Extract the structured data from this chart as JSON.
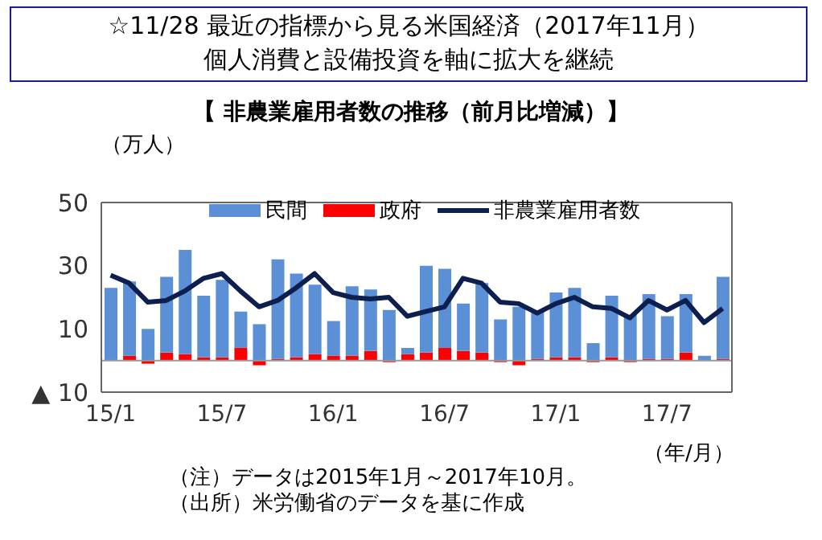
{
  "chart_data": {
    "type": "bar",
    "title": "【 非農業雇用者数の推移（前月比増減）】",
    "ylabel": "（万人）",
    "xlabel": "（年/月）",
    "annotations": [
      "☆11/28 最近の指標から見る米国経済（2017年11月）",
      "個人消費と設備投資を軸に拡大を継続",
      "（注）データは2015年1月～2017年10月。",
      "（出所）米労働省のデータを基に作成"
    ],
    "categories": [
      "15/1",
      null,
      null,
      null,
      null,
      null,
      "15/7",
      null,
      null,
      null,
      null,
      null,
      "16/1",
      null,
      null,
      null,
      null,
      null,
      "16/7",
      null,
      null,
      null,
      null,
      null,
      "17/1",
      null,
      null,
      null,
      null,
      null,
      "17/7",
      null,
      null,
      null
    ],
    "stacked": true,
    "series": [
      {
        "name": "政府",
        "color": "#ff0000",
        "values": [
          0,
          1.5,
          -1,
          2.5,
          2,
          1,
          1,
          4,
          -1.5,
          0.5,
          1,
          2,
          1.5,
          1.5,
          3,
          -0.5,
          2,
          2.5,
          4,
          3,
          2.5,
          -0.5,
          -1.5,
          0.5,
          1,
          1,
          -0.5,
          1,
          -0.5,
          0.5,
          0.5,
          2.5,
          0,
          0.5
        ]
      },
      {
        "name": "民間",
        "color": "#5b8fd6",
        "values": [
          23,
          23.5,
          10,
          24,
          33,
          19.5,
          24.5,
          11.5,
          11.5,
          31.5,
          26.5,
          22,
          11,
          22,
          19.5,
          16,
          2,
          27.5,
          25,
          15,
          22,
          13,
          17,
          15,
          20.5,
          22,
          5.5,
          19.5,
          14.5,
          20.5,
          13.5,
          18.5,
          1.5,
          26
        ]
      },
      {
        "name": "非農業雇用者数",
        "type": "line",
        "color": "#0d1f4f",
        "values": [
          27,
          24.5,
          18.5,
          19,
          22,
          26,
          27.5,
          22,
          17,
          19,
          23,
          27.5,
          21.5,
          20,
          19.5,
          20,
          14,
          15.5,
          17,
          26,
          24.5,
          18.5,
          18,
          15,
          18,
          20,
          17,
          16.5,
          13.5,
          19,
          16,
          19,
          12,
          16.5
        ]
      }
    ],
    "ylim": [
      -10,
      50
    ],
    "yticks": [
      50,
      30,
      10,
      {
        "value": -10,
        "label": "▲ 10"
      }
    ],
    "legend": "top",
    "marker": "none"
  }
}
